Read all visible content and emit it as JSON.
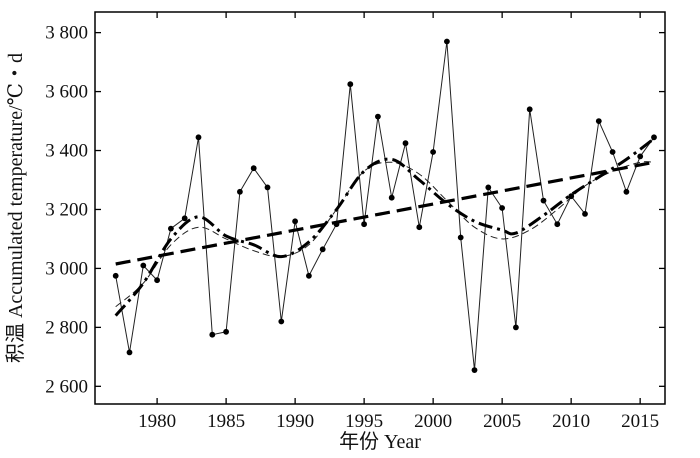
{
  "chart_data": {
    "type": "line",
    "xlabel": "年份 Year",
    "ylabel": "积温 Accumulated temperature/℃・d",
    "xlim": [
      1975.5,
      2016.8
    ],
    "ylim": [
      2540,
      3870
    ],
    "xticks": [
      1980,
      1985,
      1990,
      1995,
      2000,
      2005,
      2010,
      2015
    ],
    "xtick_labels": [
      "1980",
      "1985",
      "1990",
      "1995",
      "2000",
      "2005",
      "2010",
      "2015"
    ],
    "yticks": [
      2600,
      2800,
      3000,
      3200,
      3400,
      3600,
      3800
    ],
    "ytick_labels": [
      "2 600",
      "2 800",
      "3 000",
      "3 200",
      "3 400",
      "3 600",
      "3 800"
    ],
    "grid": false,
    "series": [
      {
        "style": "solid thin line with dot markers",
        "x": [
          1977,
          1978,
          1979,
          1980,
          1981,
          1982,
          1983,
          1984,
          1985,
          1986,
          1987,
          1988,
          1989,
          1990,
          1991,
          1992,
          1993,
          1994,
          1995,
          1996,
          1997,
          1998,
          1999,
          2000,
          2001,
          2002,
          2003,
          2004,
          2005,
          2006,
          2007,
          2008,
          2009,
          2010,
          2011,
          2012,
          2013,
          2014,
          2015,
          2016
        ],
        "values": [
          2975,
          2715,
          3010,
          2960,
          3135,
          3170,
          3445,
          2775,
          2785,
          3260,
          3340,
          3275,
          2820,
          3160,
          2975,
          3065,
          3150,
          3625,
          3150,
          3515,
          3240,
          3425,
          3140,
          3395,
          3770,
          3105,
          2655,
          3275,
          3205,
          2800,
          3540,
          3230,
          3150,
          3245,
          3185,
          3500,
          3395,
          3260,
          3380,
          3445
        ]
      },
      {
        "style": "thick dashed linear trend",
        "x": [
          1977,
          2016
        ],
        "values": [
          3015,
          3360
        ]
      },
      {
        "style": "dash-dot smoothed curve",
        "x": [
          1977,
          1979,
          1981,
          1983,
          1985,
          1987,
          1989,
          1991,
          1993,
          1995,
          1997,
          1999,
          2001,
          2003,
          2005,
          2006,
          2008,
          2010,
          2012,
          2014,
          2016
        ],
        "values": [
          2840,
          2950,
          3100,
          3175,
          3110,
          3080,
          3040,
          3090,
          3200,
          3330,
          3370,
          3300,
          3220,
          3160,
          3130,
          3120,
          3180,
          3250,
          3310,
          3370,
          3440
        ]
      },
      {
        "style": "thin dashed sinusoidal fit",
        "x": [
          1977,
          1979,
          1981,
          1983,
          1985,
          1987,
          1989,
          1991,
          1993,
          1995,
          1997,
          1999,
          2001,
          2003,
          2005,
          2007,
          2009,
          2011,
          2013,
          2015,
          2016
        ],
        "values": [
          2870,
          2950,
          3080,
          3140,
          3100,
          3060,
          3040,
          3080,
          3200,
          3330,
          3360,
          3320,
          3230,
          3140,
          3100,
          3130,
          3200,
          3280,
          3330,
          3360,
          3360
        ]
      }
    ]
  }
}
